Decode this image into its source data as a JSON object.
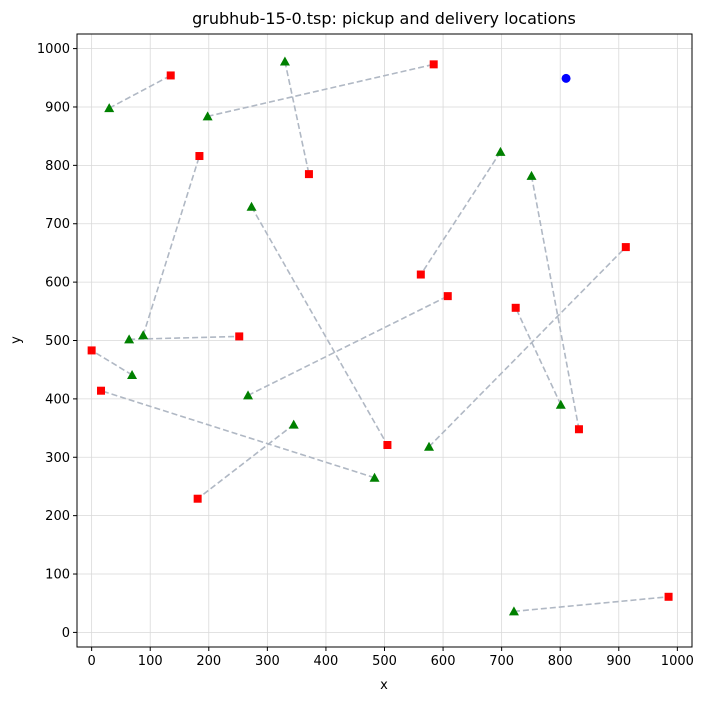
{
  "chart_data": {
    "type": "scatter",
    "title": "grubhub-15-0.tsp: pickup and delivery locations",
    "xlabel": "x",
    "ylabel": "y",
    "xlim": [
      -25,
      1025
    ],
    "ylim": [
      -25,
      1025
    ],
    "xticks": [
      0,
      100,
      200,
      300,
      400,
      500,
      600,
      700,
      800,
      900,
      1000
    ],
    "yticks": [
      0,
      100,
      200,
      300,
      400,
      500,
      600,
      700,
      800,
      900,
      1000
    ],
    "grid": true,
    "colors": {
      "depot": "#0000ff",
      "pickup": "#008000",
      "delivery": "#ff0000",
      "link": "#b0b8c4",
      "grid": "#d9d9d9"
    },
    "depot": {
      "x": 810,
      "y": 949
    },
    "pairs": [
      {
        "pickup": [
          30,
          898
        ],
        "delivery": [
          135,
          954
        ]
      },
      {
        "pickup": [
          198,
          884
        ],
        "delivery": [
          584,
          973
        ]
      },
      {
        "pickup": [
          330,
          978
        ],
        "delivery": [
          371,
          785
        ]
      },
      {
        "pickup": [
          88,
          509
        ],
        "delivery": [
          184,
          816
        ]
      },
      {
        "pickup": [
          273,
          729
        ],
        "delivery": [
          505,
          321
        ]
      },
      {
        "pickup": [
          698,
          823
        ],
        "delivery": [
          562,
          613
        ]
      },
      {
        "pickup": [
          751,
          782
        ],
        "delivery": [
          832,
          348
        ]
      },
      {
        "pickup": [
          576,
          318
        ],
        "delivery": [
          912,
          660
        ]
      },
      {
        "pickup": [
          267,
          406
        ],
        "delivery": [
          608,
          576
        ]
      },
      {
        "pickup": [
          64,
          502
        ],
        "delivery": [
          252,
          507
        ]
      },
      {
        "pickup": [
          69,
          441
        ],
        "delivery": [
          0,
          483
        ]
      },
      {
        "pickup": [
          801,
          390
        ],
        "delivery": [
          724,
          556
        ]
      },
      {
        "pickup": [
          483,
          265
        ],
        "delivery": [
          16,
          414
        ]
      },
      {
        "pickup": [
          345,
          356
        ],
        "delivery": [
          181,
          229
        ]
      },
      {
        "pickup": [
          721,
          36
        ],
        "delivery": [
          985,
          61
        ]
      }
    ]
  }
}
